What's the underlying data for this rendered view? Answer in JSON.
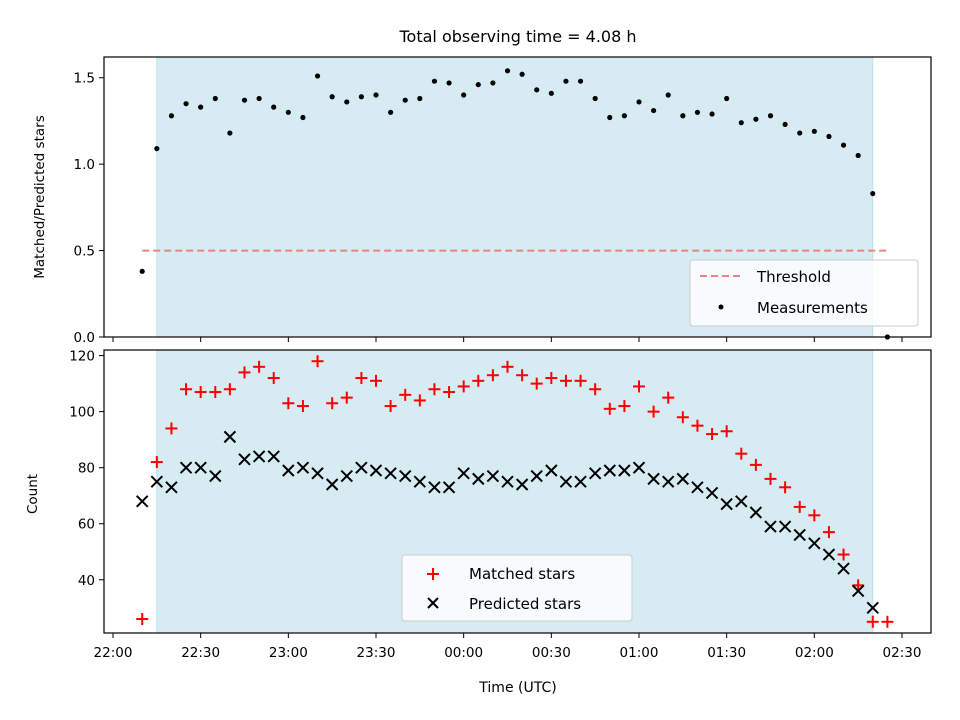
{
  "chart_data": [
    {
      "type": "scatter",
      "title": "Total observing time = 4.08 h",
      "ylabel": "Matched/Predicted stars",
      "xlabel": "",
      "ylim": [
        0,
        1.62
      ],
      "yticks": [
        0.0,
        0.5,
        1.0,
        1.5
      ],
      "ytick_labels": [
        "0.0",
        "0.5",
        "1.0",
        "1.5"
      ],
      "grid": false,
      "legend_position": "lower-right",
      "threshold": {
        "name": "Threshold",
        "value": 0.5,
        "x_start": "22:10",
        "x_end": "02:25",
        "color": "#f08080"
      },
      "shaded_span": {
        "start": "22:15",
        "end": "02:20",
        "color": "#add8e6"
      },
      "series": [
        {
          "name": "Measurements",
          "color": "#000000",
          "marker": "dot",
          "points": [
            [
              "22:10",
              0.38
            ],
            [
              "22:15",
              1.09
            ],
            [
              "22:20",
              1.28
            ],
            [
              "22:25",
              1.35
            ],
            [
              "22:30",
              1.33
            ],
            [
              "22:35",
              1.38
            ],
            [
              "22:40",
              1.18
            ],
            [
              "22:45",
              1.37
            ],
            [
              "22:50",
              1.38
            ],
            [
              "22:55",
              1.33
            ],
            [
              "23:00",
              1.3
            ],
            [
              "23:05",
              1.27
            ],
            [
              "23:10",
              1.51
            ],
            [
              "23:15",
              1.39
            ],
            [
              "23:20",
              1.36
            ],
            [
              "23:25",
              1.39
            ],
            [
              "23:30",
              1.4
            ],
            [
              "23:35",
              1.3
            ],
            [
              "23:40",
              1.37
            ],
            [
              "23:45",
              1.38
            ],
            [
              "23:50",
              1.48
            ],
            [
              "23:55",
              1.47
            ],
            [
              "00:00",
              1.4
            ],
            [
              "00:05",
              1.46
            ],
            [
              "00:10",
              1.47
            ],
            [
              "00:15",
              1.54
            ],
            [
              "00:20",
              1.52
            ],
            [
              "00:25",
              1.43
            ],
            [
              "00:30",
              1.41
            ],
            [
              "00:35",
              1.48
            ],
            [
              "00:40",
              1.48
            ],
            [
              "00:45",
              1.38
            ],
            [
              "00:50",
              1.27
            ],
            [
              "00:55",
              1.28
            ],
            [
              "01:00",
              1.36
            ],
            [
              "01:05",
              1.31
            ],
            [
              "01:10",
              1.4
            ],
            [
              "01:15",
              1.28
            ],
            [
              "01:20",
              1.3
            ],
            [
              "01:25",
              1.29
            ],
            [
              "01:30",
              1.38
            ],
            [
              "01:35",
              1.24
            ],
            [
              "01:40",
              1.26
            ],
            [
              "01:45",
              1.28
            ],
            [
              "01:50",
              1.23
            ],
            [
              "01:55",
              1.18
            ],
            [
              "02:00",
              1.19
            ],
            [
              "02:05",
              1.16
            ],
            [
              "02:10",
              1.11
            ],
            [
              "02:15",
              1.05
            ],
            [
              "02:20",
              0.83
            ],
            [
              "02:25",
              0.0
            ]
          ]
        }
      ]
    },
    {
      "type": "scatter",
      "title": "",
      "ylabel": "Count",
      "xlabel": "Time (UTC)",
      "ylim": [
        21,
        122
      ],
      "yticks": [
        40,
        60,
        80,
        100,
        120
      ],
      "ytick_labels": [
        "40",
        "60",
        "80",
        "100",
        "120"
      ],
      "xticks": [
        "22:00",
        "22:30",
        "23:00",
        "23:30",
        "00:00",
        "00:30",
        "01:00",
        "01:30",
        "02:00",
        "02:30"
      ],
      "grid": false,
      "legend_position": "lower-center",
      "shaded_span": {
        "start": "22:15",
        "end": "02:20",
        "color": "#add8e6"
      },
      "series": [
        {
          "name": "Matched stars",
          "color": "#ff0000",
          "marker": "plus",
          "points": [
            [
              "22:10",
              26
            ],
            [
              "22:15",
              82
            ],
            [
              "22:20",
              94
            ],
            [
              "22:25",
              108
            ],
            [
              "22:30",
              107
            ],
            [
              "22:35",
              107
            ],
            [
              "22:40",
              108
            ],
            [
              "22:45",
              114
            ],
            [
              "22:50",
              116
            ],
            [
              "22:55",
              112
            ],
            [
              "23:00",
              103
            ],
            [
              "23:05",
              102
            ],
            [
              "23:10",
              118
            ],
            [
              "23:15",
              103
            ],
            [
              "23:20",
              105
            ],
            [
              "23:25",
              112
            ],
            [
              "23:30",
              111
            ],
            [
              "23:35",
              102
            ],
            [
              "23:40",
              106
            ],
            [
              "23:45",
              104
            ],
            [
              "23:50",
              108
            ],
            [
              "23:55",
              107
            ],
            [
              "00:00",
              109
            ],
            [
              "00:05",
              111
            ],
            [
              "00:10",
              113
            ],
            [
              "00:15",
              116
            ],
            [
              "00:20",
              113
            ],
            [
              "00:25",
              110
            ],
            [
              "00:30",
              112
            ],
            [
              "00:35",
              111
            ],
            [
              "00:40",
              111
            ],
            [
              "00:45",
              108
            ],
            [
              "00:50",
              101
            ],
            [
              "00:55",
              102
            ],
            [
              "01:00",
              109
            ],
            [
              "01:05",
              100
            ],
            [
              "01:10",
              105
            ],
            [
              "01:15",
              98
            ],
            [
              "01:20",
              95
            ],
            [
              "01:25",
              92
            ],
            [
              "01:30",
              93
            ],
            [
              "01:35",
              85
            ],
            [
              "01:40",
              81
            ],
            [
              "01:45",
              76
            ],
            [
              "01:50",
              73
            ],
            [
              "01:55",
              66
            ],
            [
              "02:00",
              63
            ],
            [
              "02:05",
              57
            ],
            [
              "02:10",
              49
            ],
            [
              "02:15",
              38
            ],
            [
              "02:20",
              25
            ],
            [
              "02:25",
              25
            ]
          ]
        },
        {
          "name": "Predicted stars",
          "color": "#000000",
          "marker": "x",
          "points": [
            [
              "22:10",
              68
            ],
            [
              "22:15",
              75
            ],
            [
              "22:20",
              73
            ],
            [
              "22:25",
              80
            ],
            [
              "22:30",
              80
            ],
            [
              "22:35",
              77
            ],
            [
              "22:40",
              91
            ],
            [
              "22:45",
              83
            ],
            [
              "22:50",
              84
            ],
            [
              "22:55",
              84
            ],
            [
              "23:00",
              79
            ],
            [
              "23:05",
              80
            ],
            [
              "23:10",
              78
            ],
            [
              "23:15",
              74
            ],
            [
              "23:20",
              77
            ],
            [
              "23:25",
              80
            ],
            [
              "23:30",
              79
            ],
            [
              "23:35",
              78
            ],
            [
              "23:40",
              77
            ],
            [
              "23:45",
              75
            ],
            [
              "23:50",
              73
            ],
            [
              "23:55",
              73
            ],
            [
              "00:00",
              78
            ],
            [
              "00:05",
              76
            ],
            [
              "00:10",
              77
            ],
            [
              "00:15",
              75
            ],
            [
              "00:20",
              74
            ],
            [
              "00:25",
              77
            ],
            [
              "00:30",
              79
            ],
            [
              "00:35",
              75
            ],
            [
              "00:40",
              75
            ],
            [
              "00:45",
              78
            ],
            [
              "00:50",
              79
            ],
            [
              "00:55",
              79
            ],
            [
              "01:00",
              80
            ],
            [
              "01:05",
              76
            ],
            [
              "01:10",
              75
            ],
            [
              "01:15",
              76
            ],
            [
              "01:20",
              73
            ],
            [
              "01:25",
              71
            ],
            [
              "01:30",
              67
            ],
            [
              "01:35",
              68
            ],
            [
              "01:40",
              64
            ],
            [
              "01:45",
              59
            ],
            [
              "01:50",
              59
            ],
            [
              "01:55",
              56
            ],
            [
              "02:00",
              53
            ],
            [
              "02:05",
              49
            ],
            [
              "02:10",
              44
            ],
            [
              "02:15",
              36
            ],
            [
              "02:20",
              30
            ]
          ]
        }
      ]
    }
  ]
}
